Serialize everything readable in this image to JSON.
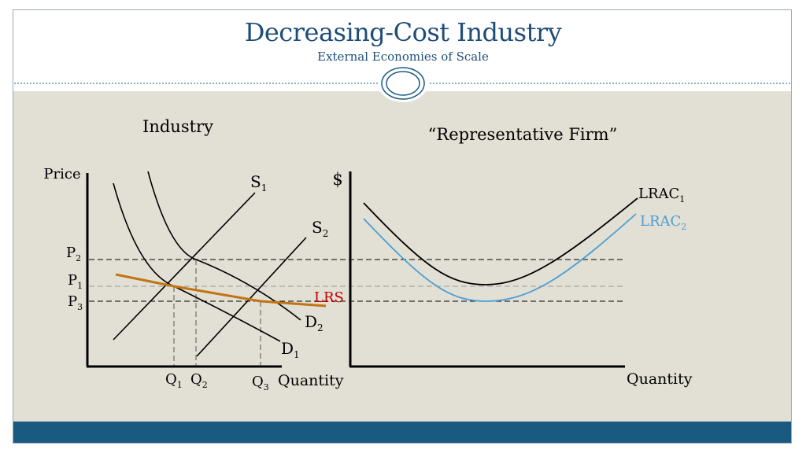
{
  "slide": {
    "title": "Decreasing-Cost Industry",
    "subtitle": "External Economies of Scale"
  },
  "colors": {
    "title": "#1e4d78",
    "footer_bar": "#1b5a80",
    "content_background": "#e2dfd4",
    "lrs_curve": "#c07414",
    "lrs_label": "#c00000",
    "lrac2_curve": "#4a9fd6"
  },
  "industry": {
    "heading": "Industry",
    "y_axis_label": "Price",
    "x_axis_label": "Quantity",
    "supply_curves": [
      {
        "name": "S",
        "subscript": "1"
      },
      {
        "name": "S",
        "subscript": "2"
      }
    ],
    "demand_curves": [
      {
        "name": "D",
        "subscript": "1"
      },
      {
        "name": "D",
        "subscript": "2"
      }
    ],
    "prices": [
      {
        "name": "P",
        "subscript": "2"
      },
      {
        "name": "P",
        "subscript": "1"
      },
      {
        "name": "P",
        "subscript": "3"
      }
    ],
    "quantities": [
      {
        "name": "Q",
        "subscript": "1"
      },
      {
        "name": "Q",
        "subscript": "2"
      },
      {
        "name": "Q",
        "subscript": "3"
      }
    ],
    "long_run_supply_label": "LRS"
  },
  "firm": {
    "heading": "“Representative Firm”",
    "y_axis_label": "$",
    "x_axis_label": "Quantity",
    "cost_curves": [
      {
        "name": "LRAC",
        "subscript": "1"
      },
      {
        "name": "LRAC",
        "subscript": "2"
      }
    ]
  }
}
